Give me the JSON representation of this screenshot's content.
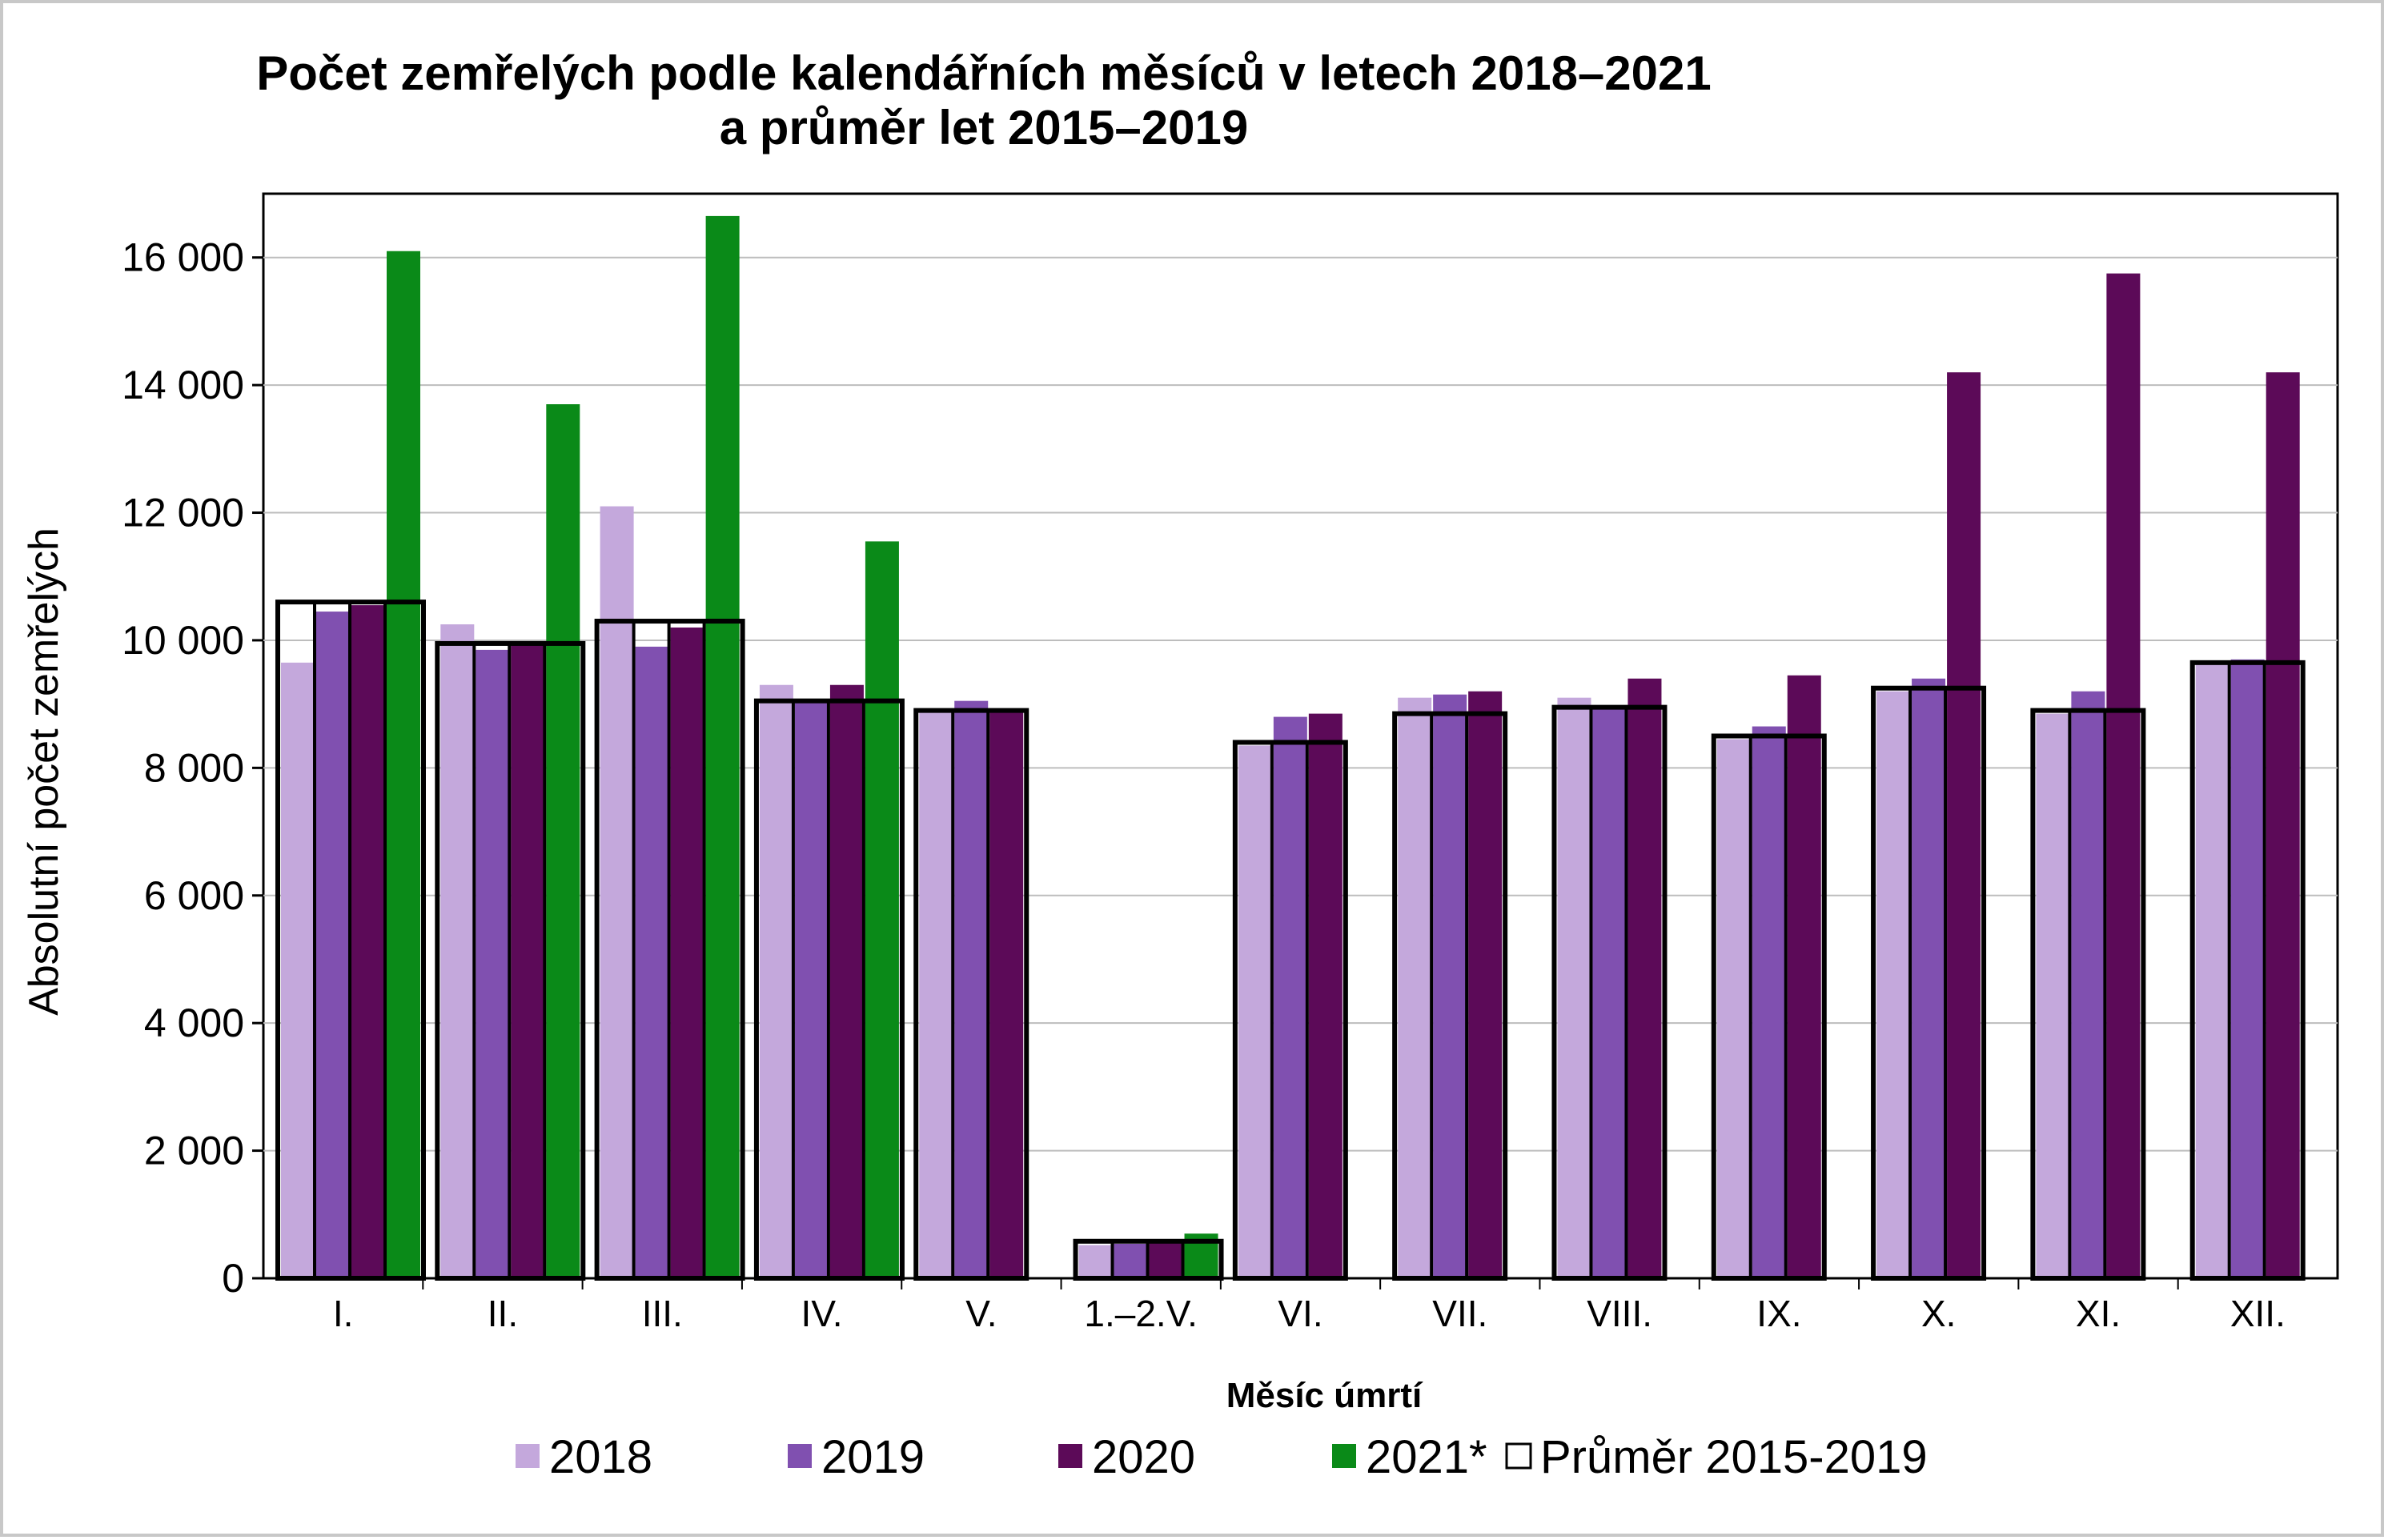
{
  "chart_data": {
    "type": "bar",
    "title": [
      "Počet zemřelých podle kalendářních měsíců v letech 2018–2021",
      "a průměr let 2015–2019"
    ],
    "xlabel": "Měsíc úmrtí",
    "ylabel": "Absolutní počet zemřelých",
    "ylim": [
      0,
      17000
    ],
    "yticks": [
      0,
      2000,
      4000,
      6000,
      8000,
      10000,
      12000,
      14000,
      16000
    ],
    "ytick_labels": [
      "0",
      "2 000",
      "4 000",
      "6 000",
      "8 000",
      "10 000",
      "12 000",
      "14 000",
      "16 000"
    ],
    "grid": true,
    "legend_position": "bottom",
    "categories": [
      "I.",
      "II.",
      "III.",
      "IV.",
      "V.",
      "1.–2.V.",
      "VI.",
      "VII.",
      "VIII.",
      "IX.",
      "X.",
      "XI.",
      "XII."
    ],
    "series": [
      {
        "name": "2018",
        "color": "#c4a8dc",
        "values": [
          9650,
          10250,
          12100,
          9300,
          8900,
          520,
          8350,
          9100,
          9100,
          8450,
          9200,
          8850,
          9650
        ]
      },
      {
        "name": "2019",
        "color": "#8050b0",
        "values": [
          10450,
          9850,
          9900,
          9050,
          9050,
          540,
          8800,
          9150,
          8950,
          8650,
          9400,
          9200,
          9700
        ]
      },
      {
        "name": "2020",
        "color": "#5c0a58",
        "values": [
          10550,
          9950,
          10200,
          9300,
          8900,
          560,
          8850,
          9200,
          9400,
          9450,
          14200,
          15750,
          14200
        ]
      },
      {
        "name": "2021*",
        "color": "#0a8a18",
        "values": [
          16100,
          13700,
          16650,
          11550,
          null,
          700,
          null,
          null,
          null,
          null,
          null,
          null,
          null
        ]
      }
    ],
    "average": {
      "name": "Průměr 2015-2019",
      "values": [
        10600,
        9950,
        10300,
        9050,
        8900,
        580,
        8400,
        8850,
        8950,
        8500,
        9250,
        8900,
        9650
      ]
    }
  }
}
